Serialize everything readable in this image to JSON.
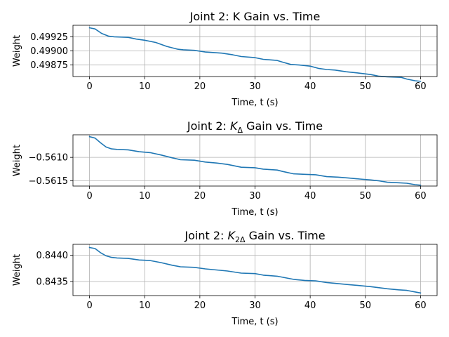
{
  "chart_data": [
    {
      "type": "line",
      "title_parts": [
        {
          "t": "Joint 2: K Gain vs. Time"
        }
      ],
      "xlabel": "Time, t (s)",
      "ylabel": "Weight",
      "xlim": [
        -3,
        63
      ],
      "ylim": [
        0.498545,
        0.499455
      ],
      "xticks": [
        "0",
        "10",
        "20",
        "30",
        "40",
        "50",
        "60"
      ],
      "yticks": [
        {
          "value": 0.49925,
          "label": "0.49925"
        },
        {
          "value": 0.499,
          "label": "0.49900"
        },
        {
          "value": 0.49875,
          "label": "0.49875"
        }
      ],
      "grid": true,
      "color": "#1f77b4",
      "x": [
        0,
        1,
        2.2,
        3.5,
        4.5,
        7,
        8.5,
        10,
        12,
        14,
        16,
        17,
        19,
        21,
        24,
        26,
        27.5,
        30,
        31.5,
        34,
        35,
        36.5,
        38,
        40,
        41.5,
        43,
        44.5,
        46.5,
        48.5,
        51,
        52.5,
        54,
        56.5,
        57.5,
        59,
        60
      ],
      "y": [
        0.49941,
        0.49939,
        0.49931,
        0.49926,
        0.49925,
        0.49924,
        0.49921,
        0.49919,
        0.49915,
        0.49908,
        0.49903,
        0.49902,
        0.49901,
        0.49898,
        0.49896,
        0.49893,
        0.4989,
        0.49888,
        0.49885,
        0.49883,
        0.4988,
        0.49876,
        0.49875,
        0.49873,
        0.49869,
        0.49867,
        0.49866,
        0.49863,
        0.49861,
        0.49858,
        0.49855,
        0.49854,
        0.49853,
        0.4985,
        0.49847,
        0.49846
      ]
    },
    {
      "type": "line",
      "title_parts": [
        {
          "t": "Joint 2: "
        },
        {
          "t": "K",
          "i": true
        },
        {
          "t": "Δ",
          "sub": true
        },
        {
          "t": " Gain vs. Time"
        }
      ],
      "xlabel": "Time, t (s)",
      "ylabel": "Weight",
      "xlim": [
        -3,
        63
      ],
      "ylim": [
        -0.56161,
        -0.56052
      ],
      "xticks": [
        "0",
        "10",
        "20",
        "30",
        "40",
        "50",
        "60"
      ],
      "yticks": [
        {
          "value": -0.561,
          "label": "−0.5610"
        },
        {
          "value": -0.5615,
          "label": "−0.5615"
        }
      ],
      "grid": true,
      "color": "#1f77b4",
      "x": [
        0,
        1,
        2,
        3,
        4,
        5,
        7,
        9,
        11,
        13,
        15,
        16.5,
        19,
        21,
        23,
        25,
        27.5,
        30,
        31.5,
        34,
        35,
        37,
        39,
        41,
        43,
        45,
        47,
        49,
        51,
        52.5,
        54,
        56,
        57.5,
        59,
        60
      ],
      "y": [
        -0.56056,
        -0.56059,
        -0.56069,
        -0.56078,
        -0.56082,
        -0.56083,
        -0.56084,
        -0.56088,
        -0.5609,
        -0.56095,
        -0.56101,
        -0.56105,
        -0.56106,
        -0.5611,
        -0.56112,
        -0.56115,
        -0.56121,
        -0.56122,
        -0.56125,
        -0.56127,
        -0.5613,
        -0.56135,
        -0.56136,
        -0.56137,
        -0.56141,
        -0.56142,
        -0.56144,
        -0.56146,
        -0.56148,
        -0.5615,
        -0.56153,
        -0.56154,
        -0.56155,
        -0.56158,
        -0.56159
      ]
    },
    {
      "type": "line",
      "title_parts": [
        {
          "t": "Joint 2: "
        },
        {
          "t": "K",
          "i": true
        },
        {
          "t": "2Δ",
          "sub": true
        },
        {
          "t": " Gain vs. Time"
        }
      ],
      "xlabel": "Time, t (s)",
      "ylabel": "Weight",
      "xlim": [
        -3,
        63
      ],
      "ylim": [
        0.84323,
        0.84421
      ],
      "xticks": [
        "0",
        "10",
        "20",
        "30",
        "40",
        "50",
        "60"
      ],
      "yticks": [
        {
          "value": 0.844,
          "label": "0.8440"
        },
        {
          "value": 0.8435,
          "label": "0.8435"
        }
      ],
      "grid": true,
      "color": "#1f77b4",
      "x": [
        0,
        1,
        2,
        3,
        4,
        5,
        7,
        9,
        11,
        13,
        15,
        16.5,
        19,
        21,
        23,
        25,
        27.5,
        30,
        31.5,
        34,
        35,
        37,
        39,
        41,
        43,
        45,
        47,
        49,
        51,
        52.5,
        54,
        56,
        57.5,
        59,
        60
      ],
      "y": [
        0.84415,
        0.84413,
        0.84405,
        0.84399,
        0.84396,
        0.84395,
        0.84394,
        0.84391,
        0.8439,
        0.84386,
        0.84381,
        0.84378,
        0.84377,
        0.84374,
        0.84372,
        0.8437,
        0.84366,
        0.84365,
        0.84362,
        0.8436,
        0.84358,
        0.84354,
        0.84352,
        0.84351,
        0.84348,
        0.84346,
        0.84344,
        0.84342,
        0.8434,
        0.84338,
        0.84336,
        0.84334,
        0.84333,
        0.8433,
        0.84328
      ]
    }
  ]
}
